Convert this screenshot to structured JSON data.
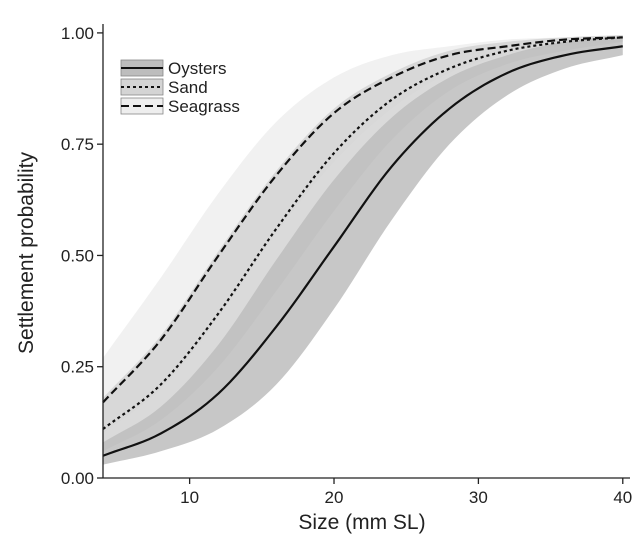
{
  "chart_data": {
    "type": "line",
    "title": "",
    "xlabel": "Size (mm SL)",
    "ylabel": "Settlement probability",
    "xlim": [
      4,
      40.5
    ],
    "ylim": [
      0,
      1.02
    ],
    "xticks": [
      10,
      20,
      30,
      40
    ],
    "yticks": [
      0.0,
      0.25,
      0.5,
      0.75,
      1.0
    ],
    "xtick_labels": [
      "10",
      "20",
      "30",
      "40"
    ],
    "ytick_labels": [
      "0.00",
      "0.25",
      "0.50",
      "0.75",
      "1.00"
    ],
    "legend": {
      "placement": "top-left",
      "entries": [
        "Oysters",
        "Sand",
        "Seagrass"
      ]
    },
    "grid": false,
    "x": [
      4,
      8,
      12,
      16,
      20,
      24,
      28,
      32,
      36,
      40
    ],
    "series": [
      {
        "name": "Oysters",
        "line_style": "solid",
        "band_color": "#bdbdbd",
        "values": [
          0.05,
          0.1,
          0.19,
          0.34,
          0.52,
          0.7,
          0.83,
          0.91,
          0.95,
          0.97
        ],
        "lower": [
          0.03,
          0.06,
          0.11,
          0.21,
          0.38,
          0.58,
          0.75,
          0.86,
          0.92,
          0.95
        ],
        "upper": [
          0.08,
          0.16,
          0.3,
          0.49,
          0.67,
          0.81,
          0.9,
          0.95,
          0.98,
          0.99
        ]
      },
      {
        "name": "Sand",
        "line_style": "dotted",
        "band_color": "#d4d4d4",
        "values": [
          0.11,
          0.21,
          0.37,
          0.56,
          0.73,
          0.85,
          0.92,
          0.96,
          0.98,
          0.99
        ],
        "lower": [
          0.06,
          0.13,
          0.25,
          0.42,
          0.6,
          0.76,
          0.87,
          0.93,
          0.96,
          0.98
        ],
        "upper": [
          0.18,
          0.32,
          0.51,
          0.69,
          0.83,
          0.91,
          0.96,
          0.98,
          0.99,
          0.995
        ]
      },
      {
        "name": "Seagrass",
        "line_style": "dashed",
        "band_color": "#eeeeee",
        "values": [
          0.17,
          0.31,
          0.5,
          0.68,
          0.82,
          0.9,
          0.95,
          0.97,
          0.985,
          0.99
        ],
        "lower": [
          0.1,
          0.2,
          0.36,
          0.55,
          0.71,
          0.83,
          0.91,
          0.95,
          0.97,
          0.98
        ],
        "upper": [
          0.27,
          0.45,
          0.64,
          0.8,
          0.9,
          0.95,
          0.97,
          0.985,
          0.99,
          0.995
        ]
      }
    ]
  }
}
